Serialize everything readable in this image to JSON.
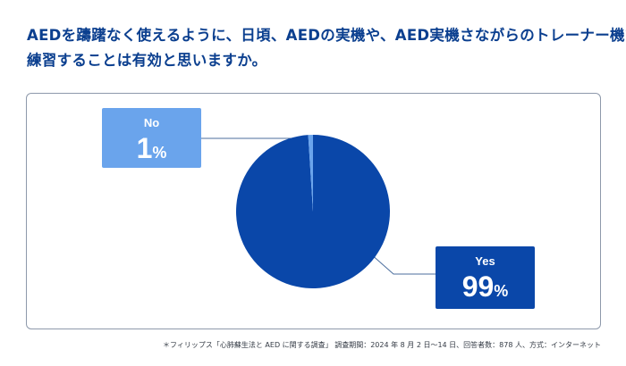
{
  "title": {
    "line1": "AEDを躊躇なく使えるように、日頃、AEDの実機や、AED実機さながらのトレーナー機で",
    "line2": "練習することは有効と思いますか。"
  },
  "colors": {
    "yes": "#0a47a9",
    "no": "#6aa4ec",
    "title": "#0b3f8f",
    "leader": "#4b6e9e"
  },
  "chart_data": {
    "type": "pie",
    "title": "AEDを躊躇なく使えるように、日頃、AEDの実機や、AED実機さながらのトレーナー機で練習することは有効と思いますか。",
    "series": [
      {
        "name": "Yes",
        "value": 99,
        "label": "99",
        "unit": "%"
      },
      {
        "name": "No",
        "value": 1,
        "label": "1",
        "unit": "%"
      }
    ]
  },
  "labels": {
    "no_name": "No",
    "no_value": "1",
    "no_unit": "%",
    "yes_name": "Yes",
    "yes_value": "99",
    "yes_unit": "%"
  },
  "footnote": "＊フィリップス「心肺蘇生法と AED に関する調査」 調査期間：2024 年 8 月 2 日〜14 日、回答者数：878 人、方式：インターネット"
}
